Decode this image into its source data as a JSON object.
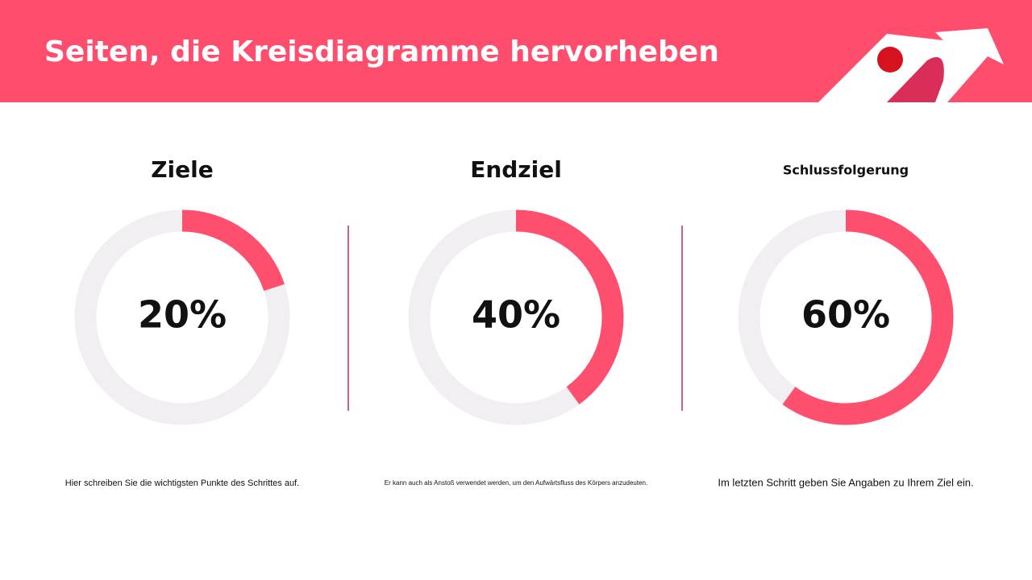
{
  "header": {
    "title": "Seiten, die Kreisdiagramme hervorheben"
  },
  "chart_data": [
    {
      "type": "donut",
      "title": "Ziele",
      "values": [
        20
      ],
      "value_labels": [
        "20%"
      ],
      "color": "#ff4f6e",
      "track_color": "#f2eff3",
      "caption": "Hier schreiben Sie die wichtigsten Punkte des Schrittes auf."
    },
    {
      "type": "donut",
      "title": "Endziel",
      "values": [
        40
      ],
      "value_labels": [
        "40%"
      ],
      "color": "#ff4f6e",
      "track_color": "#f2eff3",
      "caption": "Er kann auch als Anstoß verwendet werden, um den Aufwärtsfluss des Körpers anzudeuten."
    },
    {
      "type": "donut",
      "title": "Schlussfolgerung",
      "values": [
        60
      ],
      "value_labels": [
        "60%"
      ],
      "color": "#ff4f6e",
      "track_color": "#f2eff3",
      "caption": "Im letzten Schritt geben Sie Angaben zu Ihrem Ziel ein."
    }
  ]
}
